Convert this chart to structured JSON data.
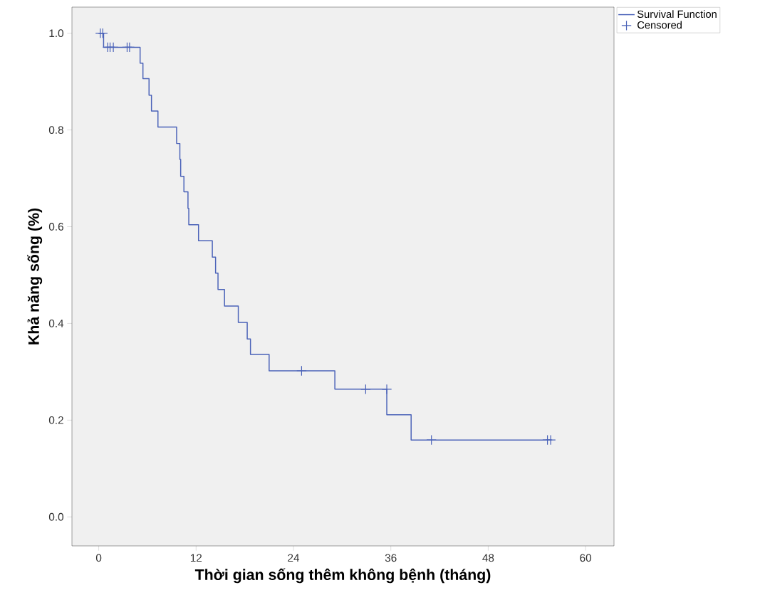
{
  "chart_data": {
    "type": "step",
    "xlabel": "Thời gian sống thêm không bệnh (tháng)",
    "ylabel": "Khả năng sống (%)",
    "xlim": [
      -3.3,
      63.5
    ],
    "ylim": [
      -0.06,
      1.054
    ],
    "xticks": [
      0,
      12,
      24,
      36,
      48,
      60
    ],
    "yticks": [
      {
        "value": 0,
        "label": "0.0"
      },
      {
        "value": 0.2,
        "label": "0.2"
      },
      {
        "value": 0.4,
        "label": "0.4"
      },
      {
        "value": 0.6,
        "label": "0.6"
      },
      {
        "value": 0.8,
        "label": "0.8"
      },
      {
        "value": 1,
        "label": "1.0"
      }
    ],
    "grid": false,
    "legend": "top right",
    "series": [
      {
        "name": "Survival Function",
        "color": "#4a62b8",
        "x": [
          0,
          0.6,
          5.1,
          5.45,
          6.2,
          6.5,
          7.3,
          9.6,
          10.0,
          10.1,
          10.5,
          11.0,
          11.1,
          12.3,
          14.0,
          14.4,
          14.7,
          15.5,
          17.2,
          18.3,
          18.7,
          21.0,
          29.1,
          35.5,
          38.5,
          55.7
        ],
        "values": [
          1.0,
          0.971,
          0.938,
          0.906,
          0.872,
          0.839,
          0.806,
          0.772,
          0.739,
          0.704,
          0.672,
          0.638,
          0.604,
          0.571,
          0.537,
          0.504,
          0.47,
          0.436,
          0.402,
          0.368,
          0.336,
          0.302,
          0.264,
          0.211,
          0.159,
          0.159
        ]
      },
      {
        "name": "Censored",
        "type": "scatter",
        "marker": "cross",
        "color": "#4a62b8",
        "x": [
          0.2,
          0.5,
          1.1,
          1.4,
          1.8,
          3.5,
          3.8,
          25.0,
          32.9,
          35.5,
          41.0,
          55.3,
          55.7
        ],
        "values": [
          1.0,
          1.0,
          0.971,
          0.971,
          0.971,
          0.971,
          0.971,
          0.302,
          0.264,
          0.264,
          0.159,
          0.159,
          0.159
        ]
      }
    ]
  }
}
